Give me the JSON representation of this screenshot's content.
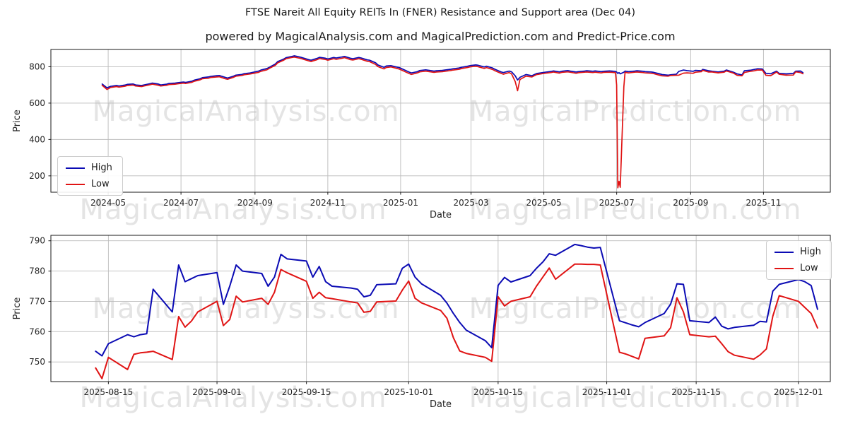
{
  "page": {
    "title": "FTSE Nareit All Equity REITs In (FNER) Resistance and Support area (Dec 04)",
    "subtitle": "powered by MagicalAnalysis.com and MagicalPrediction.com and Predict-Price.com"
  },
  "watermarks": {
    "analysis": "MagicalAnalysis.com",
    "prediction": "MagicalPrediction.com"
  },
  "colors": {
    "high": "#0b0bb4",
    "low": "#e01414",
    "grid": "#bbbbbb",
    "spine": "#1a1a1a",
    "tick_text": "#262626",
    "watermark": "#e4e4e4"
  },
  "chart_data": [
    {
      "type": "line",
      "xlabel": "Date",
      "ylabel": "Price",
      "legend_loc": "center left",
      "grid": true,
      "xlim": [
        "2024-03-14",
        "2025-12-27"
      ],
      "ylim": [
        110,
        895
      ],
      "y_ticks": [
        200,
        400,
        600,
        800
      ],
      "x_ticks": [
        "2024-05-01",
        "2024-07-01",
        "2024-09-01",
        "2024-11-01",
        "2025-01-01",
        "2025-03-01",
        "2025-05-01",
        "2025-07-01",
        "2025-09-01",
        "2025-11-01"
      ],
      "x_tick_labels": [
        "2024-05",
        "2024-07",
        "2024-09",
        "2024-11",
        "2025-01",
        "2025-03",
        "2025-05",
        "2025-07",
        "2025-09",
        "2025-11"
      ],
      "x": [
        "2024-04-26",
        "2024-04-30",
        "2024-05-03",
        "2024-05-08",
        "2024-05-10",
        "2024-05-15",
        "2024-05-17",
        "2024-05-22",
        "2024-05-24",
        "2024-05-29",
        "2024-05-31",
        "2024-06-05",
        "2024-06-07",
        "2024-06-12",
        "2024-06-14",
        "2024-06-19",
        "2024-06-21",
        "2024-06-26",
        "2024-06-28",
        "2024-07-03",
        "2024-07-05",
        "2024-07-10",
        "2024-07-12",
        "2024-07-17",
        "2024-07-19",
        "2024-07-24",
        "2024-07-26",
        "2024-07-31",
        "2024-08-02",
        "2024-08-07",
        "2024-08-09",
        "2024-08-14",
        "2024-08-16",
        "2024-08-21",
        "2024-08-23",
        "2024-08-28",
        "2024-08-30",
        "2024-09-04",
        "2024-09-06",
        "2024-09-11",
        "2024-09-13",
        "2024-09-18",
        "2024-09-20",
        "2024-09-25",
        "2024-09-27",
        "2024-10-02",
        "2024-10-04",
        "2024-10-09",
        "2024-10-11",
        "2024-10-16",
        "2024-10-18",
        "2024-10-23",
        "2024-10-25",
        "2024-10-30",
        "2024-11-01",
        "2024-11-06",
        "2024-11-08",
        "2024-11-13",
        "2024-11-15",
        "2024-11-20",
        "2024-11-22",
        "2024-11-27",
        "2024-11-29",
        "2024-12-04",
        "2024-12-06",
        "2024-12-11",
        "2024-12-13",
        "2024-12-18",
        "2024-12-20",
        "2024-12-24",
        "2024-12-27",
        "2024-12-31",
        "2025-01-03",
        "2025-01-08",
        "2025-01-10",
        "2025-01-15",
        "2025-01-17",
        "2025-01-22",
        "2025-01-24",
        "2025-01-29",
        "2025-01-31",
        "2025-02-05",
        "2025-02-07",
        "2025-02-12",
        "2025-02-14",
        "2025-02-19",
        "2025-02-21",
        "2025-02-26",
        "2025-02-28",
        "2025-03-05",
        "2025-03-07",
        "2025-03-12",
        "2025-03-14",
        "2025-03-19",
        "2025-03-21",
        "2025-03-26",
        "2025-03-28",
        "2025-04-02",
        "2025-04-04",
        "2025-04-07",
        "2025-04-09",
        "2025-04-11",
        "2025-04-16",
        "2025-04-21",
        "2025-04-23",
        "2025-04-25",
        "2025-04-30",
        "2025-05-02",
        "2025-05-07",
        "2025-05-09",
        "2025-05-14",
        "2025-05-16",
        "2025-05-21",
        "2025-05-23",
        "2025-05-28",
        "2025-05-30",
        "2025-06-04",
        "2025-06-06",
        "2025-06-11",
        "2025-06-13",
        "2025-06-18",
        "2025-06-20",
        "2025-06-25",
        "2025-06-27",
        "2025-06-30",
        "2025-07-01",
        "2025-07-02",
        "2025-07-03",
        "2025-07-04",
        "2025-07-07",
        "2025-07-08",
        "2025-07-11",
        "2025-07-16",
        "2025-07-18",
        "2025-07-23",
        "2025-07-25",
        "2025-07-30",
        "2025-08-01",
        "2025-08-06",
        "2025-08-08",
        "2025-08-13",
        "2025-08-15",
        "2025-08-20",
        "2025-08-22",
        "2025-08-26",
        "2025-08-29",
        "2025-09-03",
        "2025-09-05",
        "2025-09-10",
        "2025-09-11",
        "2025-09-16",
        "2025-09-19",
        "2025-09-24",
        "2025-09-29",
        "2025-10-01",
        "2025-10-07",
        "2025-10-10",
        "2025-10-14",
        "2025-10-16",
        "2025-10-21",
        "2025-10-24",
        "2025-10-27",
        "2025-10-31",
        "2025-11-03",
        "2025-11-07",
        "2025-11-12",
        "2025-11-14",
        "2025-11-20",
        "2025-11-26",
        "2025-11-28",
        "2025-12-02",
        "2025-12-04"
      ],
      "series": [
        {
          "name": "High",
          "color_key": "high",
          "values": [
            705,
            684,
            692,
            697,
            694,
            699,
            703,
            705,
            700,
            697,
            700,
            707,
            710,
            705,
            700,
            704,
            708,
            710,
            712,
            716,
            714,
            720,
            726,
            734,
            740,
            744,
            747,
            751,
            752,
            742,
            738,
            748,
            754,
            758,
            762,
            766,
            769,
            776,
            782,
            790,
            797,
            815,
            828,
            842,
            850,
            857,
            860,
            853,
            849,
            839,
            836,
            846,
            852,
            847,
            843,
            851,
            848,
            854,
            857,
            847,
            844,
            851,
            848,
            838,
            836,
            822,
            810,
            797,
            804,
            806,
            801,
            795,
            786,
            771,
            766,
            773,
            779,
            783,
            781,
            776,
            778,
            780,
            782,
            786,
            789,
            793,
            797,
            803,
            806,
            810,
            808,
            799,
            803,
            793,
            786,
            772,
            768,
            776,
            772,
            750,
            727,
            742,
            757,
            751,
            757,
            763,
            768,
            770,
            774,
            777,
            772,
            775,
            779,
            776,
            771,
            773,
            776,
            778,
            775,
            777,
            773,
            775,
            777,
            776,
            774,
            771,
            763,
            768,
            761,
            770,
            776,
            773,
            776,
            778,
            775,
            773,
            771,
            769,
            761,
            757,
            753.5,
            756,
            759,
            774,
            782,
            778.5,
            775,
            780,
            778,
            785.5,
            778,
            775,
            771.5,
            775.8,
            782.3,
            769.4,
            760.5,
            754.7,
            777.9,
            780.9,
            785.2,
            788.8,
            787.8,
            763.6,
            761.4,
            775.8,
            763.6,
            760.9,
            763.2,
            775.6,
            776.5,
            767.4
          ]
        },
        {
          "name": "Low",
          "color_key": "low",
          "values": [
            698,
            675,
            686,
            691,
            688,
            693,
            697,
            699,
            694,
            691,
            694,
            701,
            704,
            698,
            694,
            698,
            702,
            704,
            706,
            710,
            708,
            714,
            720,
            728,
            734,
            737,
            741,
            744,
            745,
            734,
            731,
            742,
            748,
            752,
            756,
            760,
            763,
            769,
            775,
            783,
            791,
            808,
            821,
            836,
            844,
            851,
            853,
            846,
            842,
            832,
            829,
            839,
            845,
            840,
            836,
            844,
            841,
            847,
            850,
            839,
            837,
            844,
            841,
            830,
            828,
            813,
            801,
            788,
            796,
            799,
            794,
            787,
            778,
            763,
            758,
            766,
            772,
            776,
            774,
            769,
            771,
            773,
            775,
            779,
            782,
            786,
            790,
            796,
            799,
            803,
            800,
            791,
            795,
            785,
            778,
            764,
            759,
            768,
            760,
            718,
            668,
            730,
            748,
            744,
            751,
            757,
            762,
            764,
            768,
            771,
            765,
            769,
            772,
            770,
            764,
            767,
            770,
            771,
            768,
            770,
            766,
            769,
            770,
            769,
            767,
            700,
            134,
            170,
            137,
            690,
            769,
            766,
            770,
            771,
            768,
            766,
            764,
            762,
            753,
            750,
            748,
            751.5,
            753,
            753.5,
            765,
            766.5,
            764,
            769.8,
            773,
            780.5,
            771,
            770.9,
            766.4,
            770.1,
            776.7,
            764.4,
            752.8,
            750.2,
            768.5,
            775,
            777.3,
            782.3,
            782,
            753.2,
            751,
            771.2,
            759,
            753.4,
            754.3,
            771.9,
            768,
            761.2
          ]
        }
      ]
    },
    {
      "type": "line",
      "xlabel": "Date",
      "ylabel": "Price",
      "legend_loc": "upper right",
      "grid": true,
      "xlim": [
        "2025-08-06",
        "2025-12-06"
      ],
      "ylim": [
        743.5,
        791.8
      ],
      "y_ticks": [
        750,
        760,
        770,
        780,
        790
      ],
      "x_ticks": [
        "2025-08-15",
        "2025-09-01",
        "2025-09-15",
        "2025-10-01",
        "2025-10-15",
        "2025-11-01",
        "2025-11-15",
        "2025-12-01"
      ],
      "x_tick_labels": [
        "2025-08-15",
        "2025-09-01",
        "2025-09-15",
        "2025-10-01",
        "2025-10-15",
        "2025-11-01",
        "2025-11-15",
        "2025-12-01"
      ],
      "x": [
        "2025-08-13",
        "2025-08-14",
        "2025-08-15",
        "2025-08-18",
        "2025-08-19",
        "2025-08-20",
        "2025-08-21",
        "2025-08-22",
        "2025-08-25",
        "2025-08-26",
        "2025-08-27",
        "2025-08-28",
        "2025-08-29",
        "2025-09-01",
        "2025-09-02",
        "2025-09-03",
        "2025-09-04",
        "2025-09-05",
        "2025-09-08",
        "2025-09-09",
        "2025-09-10",
        "2025-09-11",
        "2025-09-12",
        "2025-09-15",
        "2025-09-16",
        "2025-09-17",
        "2025-09-18",
        "2025-09-19",
        "2025-09-22",
        "2025-09-23",
        "2025-09-24",
        "2025-09-25",
        "2025-09-26",
        "2025-09-29",
        "2025-09-30",
        "2025-10-01",
        "2025-10-02",
        "2025-10-03",
        "2025-10-06",
        "2025-10-07",
        "2025-10-08",
        "2025-10-09",
        "2025-10-10",
        "2025-10-13",
        "2025-10-14",
        "2025-10-15",
        "2025-10-16",
        "2025-10-17",
        "2025-10-20",
        "2025-10-21",
        "2025-10-22",
        "2025-10-23",
        "2025-10-24",
        "2025-10-27",
        "2025-10-28",
        "2025-10-29",
        "2025-10-30",
        "2025-10-31",
        "2025-11-03",
        "2025-11-04",
        "2025-11-05",
        "2025-11-06",
        "2025-11-07",
        "2025-11-10",
        "2025-11-11",
        "2025-11-12",
        "2025-11-13",
        "2025-11-14",
        "2025-11-17",
        "2025-11-18",
        "2025-11-19",
        "2025-11-20",
        "2025-11-21",
        "2025-11-24",
        "2025-11-25",
        "2025-11-26",
        "2025-11-27",
        "2025-11-28",
        "2025-12-01",
        "2025-12-02",
        "2025-12-03",
        "2025-12-04"
      ],
      "series": [
        {
          "name": "High",
          "color_key": "high",
          "values": [
            753.5,
            752,
            756,
            759,
            758.3,
            759,
            759.3,
            774,
            766.5,
            782,
            776.5,
            777.5,
            778.5,
            779.5,
            769,
            775,
            782,
            780,
            779.2,
            775,
            778,
            785.5,
            784,
            783.3,
            778,
            781.5,
            776.5,
            775,
            774.4,
            774,
            771.5,
            772,
            775.5,
            775.8,
            780.9,
            782.3,
            778,
            775.8,
            772,
            769.4,
            766,
            763,
            760.5,
            757,
            754.7,
            775.3,
            777.9,
            776.4,
            778.5,
            780.9,
            783,
            785.7,
            785.2,
            788.8,
            788.4,
            787.9,
            787.6,
            787.8,
            763.6,
            762.9,
            762.2,
            761.6,
            763,
            766,
            769.1,
            775.8,
            775.6,
            763.6,
            763,
            764.8,
            761.8,
            760.9,
            761.4,
            762.1,
            763.4,
            763.2,
            773.4,
            775.6,
            777.2,
            776.5,
            775.2,
            767.4
          ]
        },
        {
          "name": "Low",
          "color_key": "low",
          "values": [
            748,
            744.5,
            751.5,
            747.5,
            752.5,
            753,
            753.2,
            753.5,
            750.8,
            765,
            761.5,
            763.5,
            766.5,
            770,
            762,
            764,
            771.7,
            769.8,
            771,
            769,
            773,
            780.5,
            779.4,
            776.6,
            771,
            773,
            771.2,
            770.9,
            769.8,
            769.5,
            766.4,
            766.7,
            769.8,
            770.1,
            773.7,
            776.7,
            771,
            769.5,
            767,
            764.4,
            758,
            753.6,
            752.8,
            751.5,
            750.2,
            771.5,
            768.5,
            770,
            771.5,
            775,
            778,
            781,
            777.3,
            782.3,
            782.3,
            782.2,
            782.2,
            782,
            753.2,
            752.6,
            751.8,
            751,
            757.8,
            758.6,
            761.3,
            771.2,
            766.5,
            759,
            758.3,
            758.5,
            756,
            753.4,
            752.2,
            750.9,
            752.3,
            754.3,
            765.1,
            771.9,
            770,
            768,
            766,
            761.2
          ]
        }
      ]
    }
  ]
}
